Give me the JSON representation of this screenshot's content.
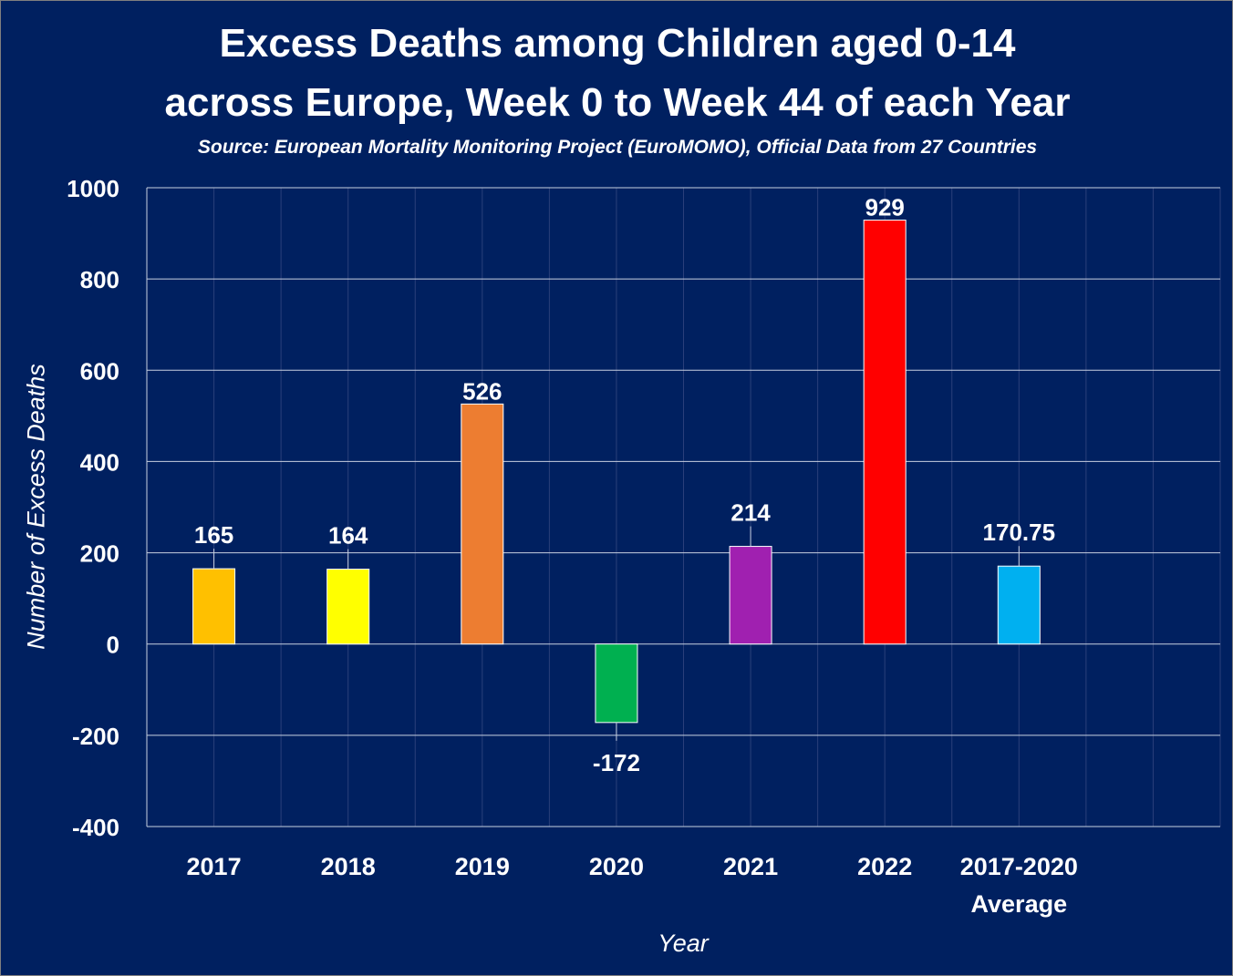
{
  "chart_data": {
    "type": "bar",
    "title_line1": "Excess Deaths among Children aged 0-14",
    "title_line2": "across Europe, Week 0 to Week 44 of each Year",
    "subtitle": "Source: European Mortality Monitoring Project (EuroMOMO), Official Data from 27 Countries",
    "xlabel": "Year",
    "ylabel": "Number of Excess Deaths",
    "ylim": [
      -400,
      1000
    ],
    "yticks": [
      1000,
      800,
      600,
      400,
      200,
      0,
      -200,
      -400
    ],
    "grid": true,
    "legend": "none",
    "categories": [
      [
        "2017"
      ],
      [
        "2018"
      ],
      [
        "2019"
      ],
      [
        "2020"
      ],
      [
        "2021"
      ],
      [
        "2022"
      ],
      [
        "2017-2020",
        "Average"
      ]
    ],
    "values": [
      165,
      164,
      526,
      -172,
      214,
      929,
      170.75
    ],
    "data_labels": [
      "165",
      "164",
      "526",
      "-172",
      "214",
      "929",
      "170.75"
    ],
    "colors": [
      "#ffc000",
      "#ffff00",
      "#ed7d31",
      "#00b050",
      "#a020b0",
      "#ff0000",
      "#00b0f0"
    ],
    "background_color": "#002060",
    "text_color": "#ffffff"
  }
}
